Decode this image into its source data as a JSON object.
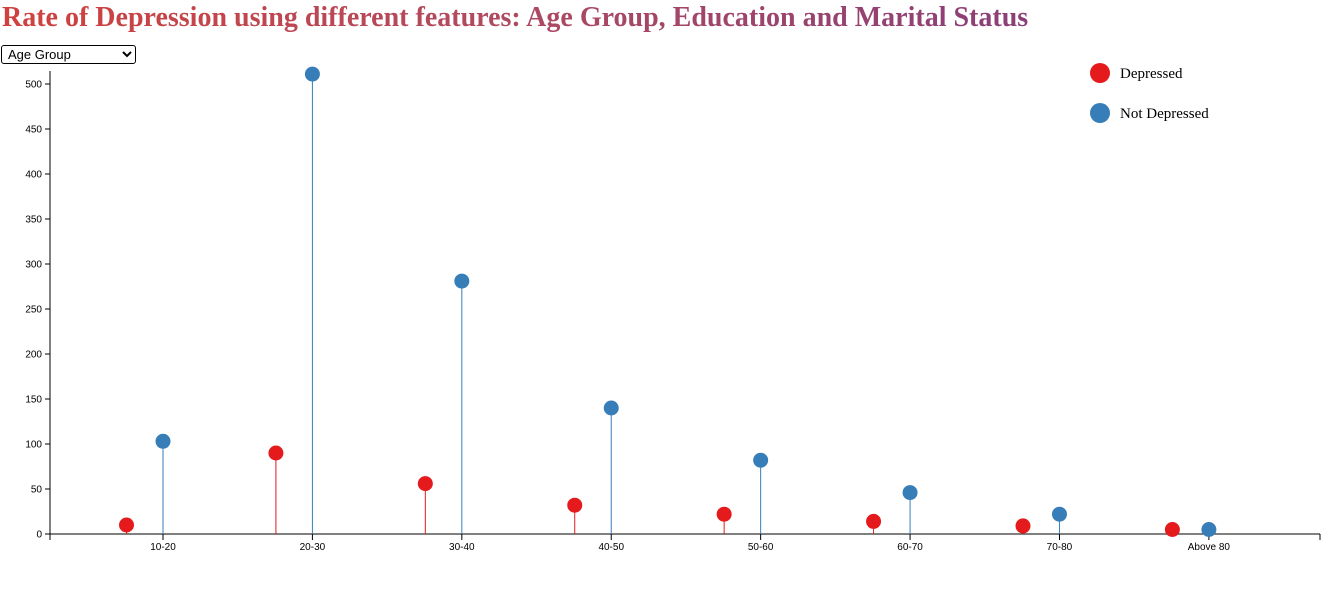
{
  "page": {
    "title": "Rate of Depression using different features: Age Group, Education and Marital Status"
  },
  "controls": {
    "feature_select": {
      "selected": "Age Group",
      "options": [
        "Age Group"
      ]
    }
  },
  "colors": {
    "depressed": "#e41a1c",
    "not_depressed": "#377eb8"
  },
  "chart_data": {
    "type": "lollipop",
    "title": "Rate of Depression using different features: Age Group, Education and Marital Status",
    "xlabel": "",
    "ylabel": "",
    "categories": [
      "10-20",
      "20-30",
      "30-40",
      "40-50",
      "50-60",
      "60-70",
      "70-80",
      "Above 80"
    ],
    "series": [
      {
        "name": "Depressed",
        "color": "#e41a1c",
        "values": [
          10,
          90,
          56,
          32,
          22,
          14,
          9,
          5
        ]
      },
      {
        "name": "Not Depressed",
        "color": "#377eb8",
        "values": [
          103,
          511,
          281,
          140,
          82,
          46,
          22,
          5
        ]
      }
    ],
    "ylim": [
      0,
      510
    ],
    "yticks": [
      0,
      50,
      100,
      150,
      200,
      250,
      300,
      350,
      400,
      450,
      500
    ],
    "legend_position": "top-right",
    "grid": false
  }
}
